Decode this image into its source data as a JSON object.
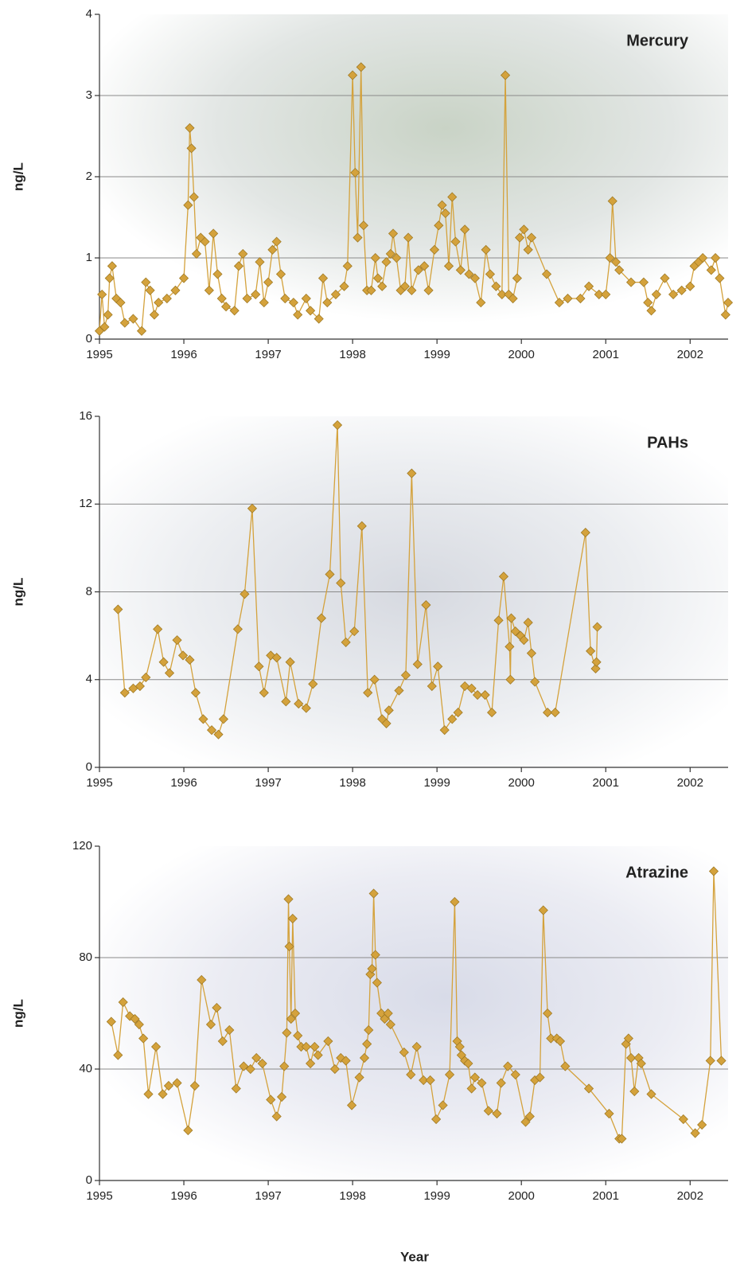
{
  "chart_data": [
    {
      "type": "line",
      "title": "Mercury",
      "ylabel": "ng/L",
      "color": "#d4a23c",
      "grid": true,
      "xlim": [
        1995,
        2002.45
      ],
      "xticks": [
        1995,
        1996,
        1997,
        1998,
        1999,
        2000,
        2001,
        2002
      ],
      "ylim": [
        0,
        4
      ],
      "yticks": [
        0,
        1,
        2,
        3,
        4
      ],
      "x": [
        1995.0,
        1995.03,
        1995.06,
        1995.1,
        1995.12,
        1995.15,
        1995.2,
        1995.25,
        1995.3,
        1995.4,
        1995.5,
        1995.55,
        1995.6,
        1995.65,
        1995.7,
        1995.8,
        1995.9,
        1996.0,
        1996.05,
        1996.07,
        1996.09,
        1996.12,
        1996.15,
        1996.2,
        1996.25,
        1996.3,
        1996.35,
        1996.4,
        1996.45,
        1996.5,
        1996.6,
        1996.65,
        1996.7,
        1996.75,
        1996.85,
        1996.9,
        1996.95,
        1997.0,
        1997.05,
        1997.1,
        1997.15,
        1997.2,
        1997.3,
        1997.35,
        1997.45,
        1997.5,
        1997.6,
        1997.65,
        1997.7,
        1997.8,
        1997.9,
        1997.94,
        1998.0,
        1998.03,
        1998.06,
        1998.1,
        1998.13,
        1998.17,
        1998.22,
        1998.27,
        1998.3,
        1998.35,
        1998.4,
        1998.45,
        1998.48,
        1998.52,
        1998.57,
        1998.62,
        1998.66,
        1998.7,
        1998.78,
        1998.85,
        1998.9,
        1998.97,
        1999.02,
        1999.06,
        1999.1,
        1999.14,
        1999.18,
        1999.22,
        1999.28,
        1999.33,
        1999.38,
        1999.45,
        1999.52,
        1999.58,
        1999.63,
        1999.7,
        1999.77,
        1999.81,
        1999.85,
        1999.9,
        1999.95,
        1999.98,
        2000.03,
        2000.08,
        2000.12,
        2000.3,
        2000.45,
        2000.55,
        2000.7,
        2000.8,
        2000.92,
        2001.0,
        2001.05,
        2001.08,
        2001.12,
        2001.16,
        2001.3,
        2001.45,
        2001.5,
        2001.54,
        2001.6,
        2001.7,
        2001.8,
        2001.9,
        2002.0,
        2002.05,
        2002.1,
        2002.15,
        2002.25,
        2002.3,
        2002.35,
        2002.42,
        2002.45
      ],
      "values": [
        0.1,
        0.55,
        0.15,
        0.3,
        0.75,
        0.9,
        0.5,
        0.45,
        0.2,
        0.25,
        0.1,
        0.7,
        0.6,
        0.3,
        0.45,
        0.5,
        0.6,
        0.75,
        1.65,
        2.6,
        2.35,
        1.75,
        1.05,
        1.25,
        1.2,
        0.6,
        1.3,
        0.8,
        0.5,
        0.4,
        0.35,
        0.9,
        1.05,
        0.5,
        0.55,
        0.95,
        0.45,
        0.7,
        1.1,
        1.2,
        0.8,
        0.5,
        0.45,
        0.3,
        0.5,
        0.35,
        0.25,
        0.75,
        0.45,
        0.55,
        0.65,
        0.9,
        3.25,
        2.05,
        1.25,
        3.35,
        1.4,
        0.6,
        0.6,
        1.0,
        0.75,
        0.65,
        0.95,
        1.05,
        1.3,
        1.0,
        0.6,
        0.65,
        1.25,
        0.6,
        0.85,
        0.9,
        0.6,
        1.1,
        1.4,
        1.65,
        1.55,
        0.9,
        1.75,
        1.2,
        0.85,
        1.35,
        0.8,
        0.75,
        0.45,
        1.1,
        0.8,
        0.65,
        0.55,
        3.25,
        0.55,
        0.5,
        0.75,
        1.25,
        1.35,
        1.1,
        1.25,
        0.8,
        0.45,
        0.5,
        0.5,
        0.65,
        0.55,
        0.55,
        1.0,
        1.7,
        0.95,
        0.85,
        0.7,
        0.7,
        0.45,
        0.35,
        0.55,
        0.75,
        0.55,
        0.6,
        0.65,
        0.9,
        0.95,
        1.0,
        0.85,
        1.0,
        0.75,
        0.3,
        0.45
      ]
    },
    {
      "type": "line",
      "title": "PAHs",
      "ylabel": "ng/L",
      "color": "#d4a23c",
      "grid": true,
      "xlim": [
        1995,
        2002.45
      ],
      "xticks": [
        1995,
        1996,
        1997,
        1998,
        1999,
        2000,
        2001,
        2002
      ],
      "ylim": [
        0,
        16
      ],
      "yticks": [
        0,
        4,
        8,
        12,
        16
      ],
      "x": [
        1995.22,
        1995.3,
        1995.4,
        1995.48,
        1995.55,
        1995.69,
        1995.76,
        1995.83,
        1995.92,
        1995.99,
        1996.07,
        1996.14,
        1996.23,
        1996.33,
        1996.41,
        1996.47,
        1996.64,
        1996.72,
        1996.81,
        1996.89,
        1996.95,
        1997.03,
        1997.1,
        1997.21,
        1997.26,
        1997.36,
        1997.45,
        1997.53,
        1997.63,
        1997.73,
        1997.82,
        1997.86,
        1997.92,
        1998.02,
        1998.11,
        1998.18,
        1998.26,
        1998.35,
        1998.4,
        1998.43,
        1998.55,
        1998.63,
        1998.7,
        1998.77,
        1998.87,
        1998.94,
        1999.01,
        1999.09,
        1999.18,
        1999.25,
        1999.33,
        1999.41,
        1999.48,
        1999.57,
        1999.65,
        1999.73,
        1999.79,
        1999.86,
        1999.87,
        1999.88,
        1999.93,
        1999.99,
        2000.03,
        2000.08,
        2000.12,
        2000.16,
        2000.31,
        2000.4,
        2000.76,
        2000.82,
        2000.88,
        2000.89,
        2000.9
      ],
      "values": [
        7.2,
        3.4,
        3.6,
        3.7,
        4.1,
        6.3,
        4.8,
        4.3,
        5.8,
        5.1,
        4.9,
        3.4,
        2.2,
        1.7,
        1.5,
        2.2,
        6.3,
        7.9,
        11.8,
        4.6,
        3.4,
        5.1,
        5.0,
        3.0,
        4.8,
        2.9,
        2.7,
        3.8,
        6.8,
        8.8,
        15.6,
        8.4,
        5.7,
        6.2,
        11.0,
        3.4,
        4.0,
        2.2,
        2.0,
        2.6,
        3.5,
        4.2,
        13.4,
        4.7,
        7.4,
        3.7,
        4.6,
        1.7,
        2.2,
        2.5,
        3.7,
        3.6,
        3.3,
        3.3,
        2.5,
        6.7,
        8.7,
        5.5,
        4.0,
        6.8,
        6.2,
        6.0,
        5.8,
        6.6,
        5.2,
        3.9,
        2.5,
        2.5,
        10.7,
        5.3,
        4.5,
        4.8,
        6.4
      ]
    },
    {
      "type": "line",
      "title": "Atrazine",
      "ylabel": "ng/L",
      "xlabel": "Year",
      "color": "#d4a23c",
      "grid": true,
      "xlim": [
        1995,
        2002.45
      ],
      "xticks": [
        1995,
        1996,
        1997,
        1998,
        1999,
        2000,
        2001,
        2002
      ],
      "ylim": [
        0,
        120
      ],
      "yticks": [
        0,
        40,
        80,
        120
      ],
      "x": [
        1995.14,
        1995.22,
        1995.28,
        1995.36,
        1995.42,
        1995.47,
        1995.52,
        1995.58,
        1995.67,
        1995.75,
        1995.82,
        1995.92,
        1996.05,
        1996.13,
        1996.21,
        1996.32,
        1996.39,
        1996.46,
        1996.54,
        1996.62,
        1996.71,
        1996.79,
        1996.86,
        1996.93,
        1997.03,
        1997.1,
        1997.16,
        1997.19,
        1997.22,
        1997.24,
        1997.25,
        1997.27,
        1997.29,
        1997.32,
        1997.35,
        1997.39,
        1997.45,
        1997.5,
        1997.55,
        1997.59,
        1997.71,
        1997.79,
        1997.86,
        1997.92,
        1997.99,
        1998.08,
        1998.14,
        1998.17,
        1998.19,
        1998.21,
        1998.23,
        1998.25,
        1998.27,
        1998.29,
        1998.34,
        1998.38,
        1998.42,
        1998.45,
        1998.61,
        1998.69,
        1998.76,
        1998.84,
        1998.92,
        1998.99,
        1999.07,
        1999.15,
        1999.21,
        1999.24,
        1999.27,
        1999.29,
        1999.33,
        1999.37,
        1999.41,
        1999.45,
        1999.53,
        1999.61,
        1999.71,
        1999.76,
        1999.84,
        1999.93,
        2000.05,
        2000.1,
        2000.16,
        2000.22,
        2000.26,
        2000.31,
        2000.35,
        2000.42,
        2000.46,
        2000.52,
        2000.8,
        2001.04,
        2001.16,
        2001.19,
        2001.24,
        2001.27,
        2001.3,
        2001.34,
        2001.39,
        2001.42,
        2001.54,
        2001.92,
        2002.06,
        2002.14,
        2002.24,
        2002.28,
        2002.37
      ],
      "values": [
        57,
        45,
        64,
        59,
        58,
        56,
        51,
        31,
        48,
        31,
        34,
        35,
        18,
        34,
        72,
        56,
        62,
        50,
        54,
        33,
        41,
        40,
        44,
        42,
        29,
        23,
        30,
        41,
        53,
        101,
        84,
        58,
        94,
        60,
        52,
        48,
        48,
        42,
        48,
        45,
        50,
        40,
        44,
        43,
        27,
        37,
        44,
        49,
        54,
        74,
        76,
        103,
        81,
        71,
        60,
        58,
        60,
        56,
        46,
        38,
        48,
        36,
        36,
        22,
        27,
        38,
        100,
        50,
        48,
        45,
        43,
        42,
        33,
        37,
        35,
        25,
        24,
        35,
        41,
        38,
        21,
        23,
        36,
        37,
        97,
        60,
        51,
        51,
        50,
        41,
        33,
        24,
        15,
        15,
        49,
        51,
        44,
        32,
        44,
        42,
        31,
        22,
        17,
        20,
        43,
        111,
        43
      ]
    }
  ]
}
